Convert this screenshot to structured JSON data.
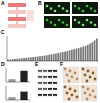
{
  "figure": {
    "panel_labels": [
      "A",
      "B",
      "C",
      "D",
      "E",
      "F"
    ]
  },
  "chart_data": [
    {
      "type": "bar",
      "color": "#777777",
      "ylim": [
        0,
        20
      ],
      "tick_labels": false,
      "values": [
        1,
        1.2,
        1.4,
        1.6,
        1.8,
        2,
        2.2,
        2.4,
        2.6,
        2.8,
        3,
        3.2,
        3.4,
        3.6,
        3.8,
        4,
        4.3,
        4.6,
        5,
        5.3,
        5.6,
        6,
        6.4,
        6.8,
        7.2,
        7.6,
        8,
        8.5,
        9,
        9.5,
        10,
        10.5,
        11,
        11.5,
        12,
        13,
        14,
        15,
        16.5,
        18
      ]
    },
    {
      "type": "bar",
      "colors": [
        "#999999",
        "#222222"
      ],
      "ylim": [
        0,
        5
      ],
      "tick_labels": false,
      "values": [
        1,
        4
      ]
    },
    {
      "type": "bar",
      "colors": [
        "#999999",
        "#222222"
      ],
      "ylim": [
        0,
        5
      ],
      "tick_labels": false,
      "values": [
        1,
        3
      ]
    }
  ]
}
